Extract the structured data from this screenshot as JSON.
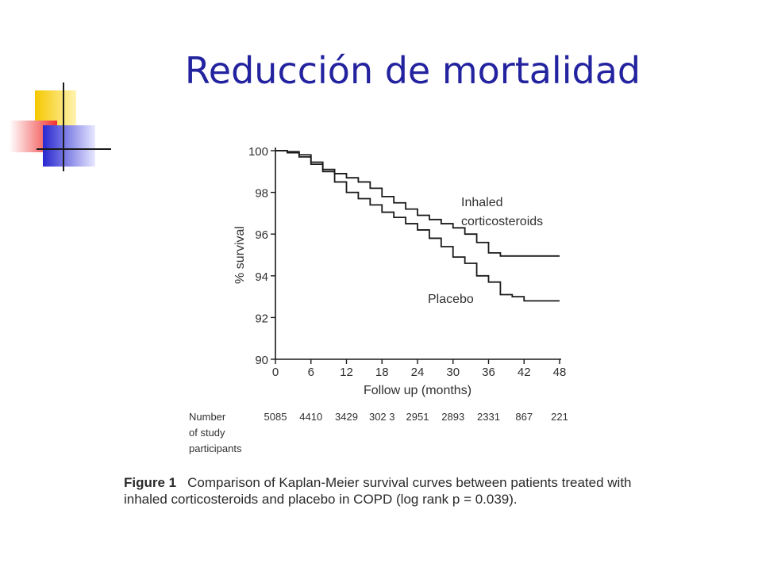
{
  "slide": {
    "title": "Reducción de mortalidad"
  },
  "colors": {
    "title": "#2323a0",
    "logo_yellow": "#f5c800",
    "logo_red": "#f03030",
    "logo_blue": "#2828d0",
    "curves": "#1a1a1a"
  },
  "figure": {
    "label": "Figure 1",
    "caption": "Comparison of Kaplan-Meier survival curves between patients treated with inhaled corticosteroids and placebo in COPD (log rank p = 0.039)."
  },
  "number_at_risk": {
    "label_lines": [
      "Number",
      "of study",
      "participants"
    ],
    "values": [
      "5085",
      "4410",
      "3429",
      "302 3",
      "2951",
      "2893",
      "2331",
      "867",
      "221"
    ],
    "months": [
      0,
      6,
      12,
      18,
      24,
      30,
      36,
      42,
      48
    ]
  },
  "chart_data": {
    "type": "line",
    "xlabel": "Follow up (months)",
    "ylabel": "% survival",
    "xlim": [
      0,
      48
    ],
    "ylim": [
      90,
      100
    ],
    "xticks": [
      0,
      6,
      12,
      18,
      24,
      30,
      36,
      42,
      48
    ],
    "yticks": [
      90,
      92,
      94,
      96,
      98,
      100
    ],
    "series": [
      {
        "name": "Inhaled corticosteroids",
        "label_lines": [
          "Inhaled",
          "corticosteroids"
        ],
        "x": [
          0,
          2,
          4,
          6,
          8,
          10,
          12,
          14,
          16,
          18,
          20,
          22,
          24,
          26,
          28,
          30,
          32,
          34,
          36,
          38,
          40,
          42,
          44,
          46,
          48
        ],
        "y": [
          100,
          99.9,
          99.7,
          99.35,
          99.1,
          98.9,
          98.7,
          98.5,
          98.2,
          97.8,
          97.5,
          97.2,
          96.9,
          96.7,
          96.5,
          96.3,
          96.0,
          95.6,
          95.1,
          94.95,
          94.95,
          94.95,
          94.95,
          94.95,
          94.95
        ]
      },
      {
        "name": "Placebo",
        "label_lines": [
          "Placebo"
        ],
        "x": [
          0,
          2,
          4,
          6,
          8,
          10,
          12,
          14,
          16,
          18,
          20,
          22,
          24,
          26,
          28,
          30,
          32,
          34,
          36,
          38,
          40,
          42,
          44,
          46,
          48
        ],
        "y": [
          100,
          99.95,
          99.8,
          99.45,
          99.0,
          98.5,
          98.0,
          97.7,
          97.4,
          97.05,
          96.8,
          96.5,
          96.2,
          95.8,
          95.4,
          94.9,
          94.6,
          94.0,
          93.7,
          93.1,
          93.0,
          92.8,
          92.8,
          92.8,
          92.8
        ]
      }
    ]
  }
}
